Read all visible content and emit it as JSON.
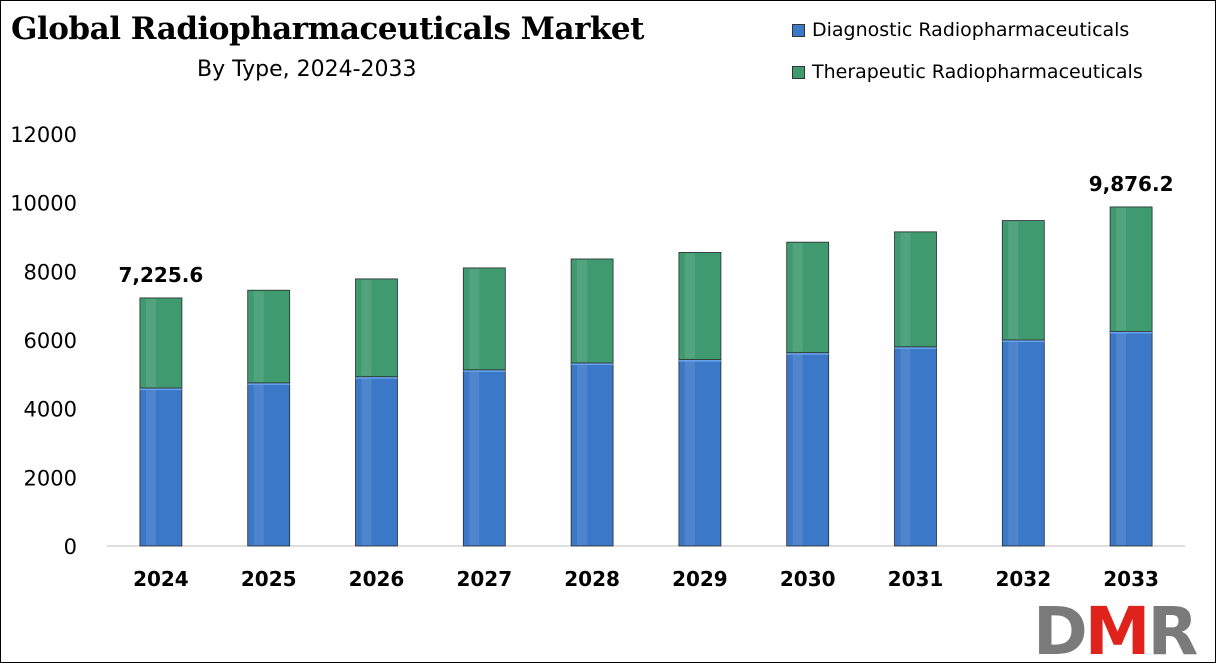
{
  "chart_data": {
    "type": "bar",
    "stacked": true,
    "title": "Global Radiopharmaceuticals Market",
    "subtitle": "By Type, 2024-2033",
    "xlabel": "",
    "ylabel": "",
    "categories": [
      "2024",
      "2025",
      "2026",
      "2027",
      "2028",
      "2029",
      "2030",
      "2031",
      "2032",
      "2033"
    ],
    "series": [
      {
        "name": "Diagnostic Radiopharmaceuticals",
        "color": "#3b78c8",
        "values": [
          4600,
          4750,
          4930,
          5130,
          5330,
          5430,
          5630,
          5800,
          6000,
          6250
        ]
      },
      {
        "name": "Therapeutic Radiopharmaceuticals",
        "color": "#3f9a70",
        "values": [
          2625.6,
          2700,
          2850,
          2970,
          3030,
          3120,
          3220,
          3350,
          3480,
          3626.2
        ]
      }
    ],
    "annotations": [
      {
        "category": "2024",
        "text": "7,225.6"
      },
      {
        "category": "2033",
        "text": "9,876.2"
      }
    ],
    "ylim": [
      0,
      12000
    ],
    "yticks": [
      "0",
      "2000",
      "4000",
      "6000",
      "8000",
      "10000",
      "12000"
    ],
    "grid": false,
    "legend_position": "top-right"
  },
  "logo": {
    "text_left": "D",
    "text_mid": "M",
    "text_right": "R"
  }
}
